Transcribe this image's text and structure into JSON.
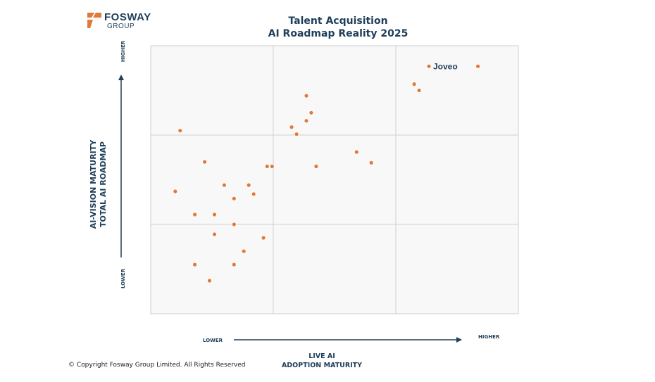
{
  "logo": {
    "brand": "FOSWAY",
    "sub": "GROUP"
  },
  "title": {
    "line1": "Talent Acquisition",
    "line2": "AI Roadmap Reality 2025"
  },
  "footer": "© Copyright Fosway Group Limited. All Rights Reserved",
  "colors": {
    "marker": "#e07a3a",
    "text": "#1f3f5a",
    "grid": "#cfcfcf",
    "plot_bg": "#f8f8f8"
  },
  "chart_data": {
    "type": "scatter",
    "xlabel": [
      "LIVE AI",
      "ADOPTION MATURITY"
    ],
    "ylabel": [
      "AI-VISION MATURITY",
      "TOTAL AI ROADMAP"
    ],
    "x_ticks": {
      "low": "LOWER",
      "high": "HIGHER"
    },
    "y_ticks": {
      "low": "LOWER",
      "high": "HIGHER"
    },
    "xlim": [
      0,
      3
    ],
    "ylim": [
      0,
      3
    ],
    "grid": "3x3 quadrant",
    "points": [
      {
        "x": 2.27,
        "y": 2.77,
        "label": "Joveo"
      },
      {
        "x": 2.67,
        "y": 2.77
      },
      {
        "x": 2.15,
        "y": 2.57
      },
      {
        "x": 2.19,
        "y": 2.5
      },
      {
        "x": 1.27,
        "y": 2.44
      },
      {
        "x": 1.31,
        "y": 2.25
      },
      {
        "x": 1.27,
        "y": 2.16
      },
      {
        "x": 1.15,
        "y": 2.09
      },
      {
        "x": 1.19,
        "y": 2.01
      },
      {
        "x": 0.24,
        "y": 2.05
      },
      {
        "x": 1.68,
        "y": 1.81
      },
      {
        "x": 1.8,
        "y": 1.69
      },
      {
        "x": 0.44,
        "y": 1.7
      },
      {
        "x": 0.95,
        "y": 1.65
      },
      {
        "x": 0.99,
        "y": 1.65
      },
      {
        "x": 1.35,
        "y": 1.65
      },
      {
        "x": 0.6,
        "y": 1.44
      },
      {
        "x": 0.8,
        "y": 1.44
      },
      {
        "x": 0.2,
        "y": 1.37
      },
      {
        "x": 0.84,
        "y": 1.34
      },
      {
        "x": 0.68,
        "y": 1.29
      },
      {
        "x": 0.36,
        "y": 1.11
      },
      {
        "x": 0.52,
        "y": 1.11
      },
      {
        "x": 0.68,
        "y": 1.0
      },
      {
        "x": 0.52,
        "y": 0.89
      },
      {
        "x": 0.92,
        "y": 0.85
      },
      {
        "x": 0.76,
        "y": 0.7
      },
      {
        "x": 0.36,
        "y": 0.55
      },
      {
        "x": 0.68,
        "y": 0.55
      },
      {
        "x": 0.48,
        "y": 0.37
      }
    ]
  }
}
